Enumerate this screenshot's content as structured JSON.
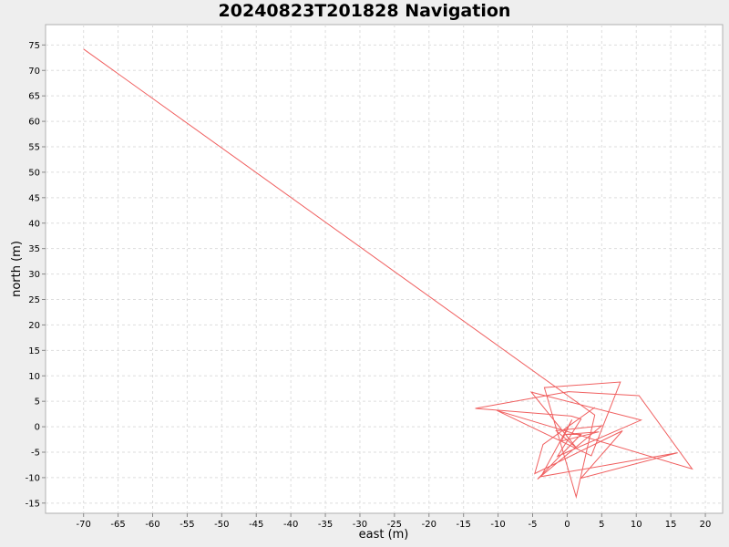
{
  "chart_data": {
    "type": "line",
    "title": "20240823T201828 Navigation",
    "xlabel": "east (m)",
    "ylabel": "north (m)",
    "xlim": [
      -75.5,
      22.5
    ],
    "ylim": [
      -17,
      79
    ],
    "xticks": [
      -70,
      -65,
      -60,
      -55,
      -50,
      -45,
      -40,
      -35,
      -30,
      -25,
      -20,
      -15,
      -10,
      -5,
      0,
      5,
      10,
      15,
      20
    ],
    "yticks": [
      -15,
      -10,
      -5,
      0,
      5,
      10,
      15,
      20,
      25,
      30,
      35,
      40,
      45,
      50,
      55,
      60,
      65,
      70,
      75
    ],
    "grid": true,
    "series": [
      {
        "color": "#f06060",
        "x": [
          -70,
          4.0,
          1.3,
          -3.3,
          7.7,
          3.5,
          -10.2,
          18.1,
          10.4,
          0.2,
          -13.3,
          0.6,
          2.0,
          -1.4,
          10.7,
          -5.2,
          1.3,
          -1.6,
          5.0,
          -4.3,
          2.0,
          -0.3,
          4.6,
          -0.8,
          0.7,
          -3.8,
          16.0,
          2.0,
          8.0,
          -4.7,
          -3.5,
          4.0
        ],
        "y": [
          74.2,
          2.3,
          -13.8,
          7.7,
          8.8,
          -5.7,
          3.2,
          -8.3,
          6.1,
          6.9,
          3.6,
          2.1,
          1.5,
          -5.8,
          1.3,
          6.8,
          -4.1,
          -0.8,
          0.2,
          -10.3,
          -1.5,
          -1.5,
          -1.0,
          -2.8,
          1.4,
          -9.8,
          -5.1,
          -10.1,
          -0.8,
          -9.2,
          -3.5,
          3.8
        ]
      }
    ]
  }
}
